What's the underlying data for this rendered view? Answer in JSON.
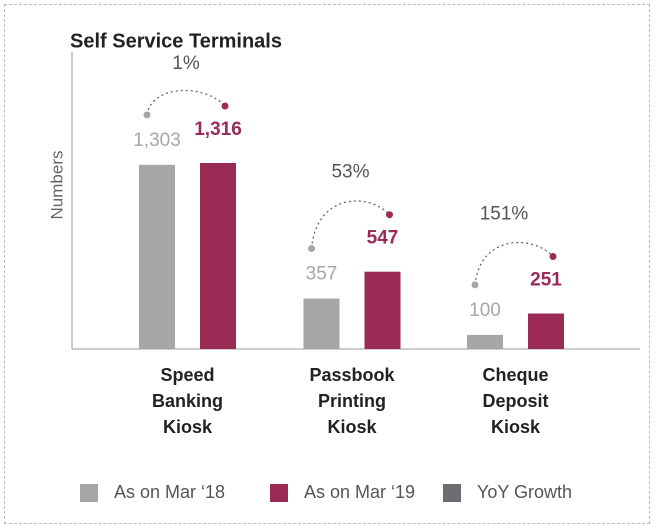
{
  "chart_data": {
    "type": "bar",
    "title": "Self Service Terminals",
    "y_label": "Numbers",
    "categories": [
      "Speed Banking Kiosk",
      "Passbook Printing Kiosk",
      "Cheque Deposit Kiosk"
    ],
    "ylim": [
      0,
      1500
    ],
    "series": [
      {
        "name": "As on Mar ‘18",
        "color": "#a6a6a6",
        "values": [
          1303,
          357,
          100
        ],
        "value_labels": [
          "1,303",
          "357",
          "100"
        ]
      },
      {
        "name": "As on Mar ‘19",
        "color": "#9b2a55",
        "values": [
          1316,
          547,
          251
        ],
        "value_labels": [
          "1,316",
          "547",
          "251"
        ]
      },
      {
        "name": "YoY Growth",
        "color": "#6d6e71",
        "values": [
          1,
          53,
          151
        ],
        "value_labels": [
          "1%",
          "53%",
          "151%"
        ]
      }
    ]
  }
}
